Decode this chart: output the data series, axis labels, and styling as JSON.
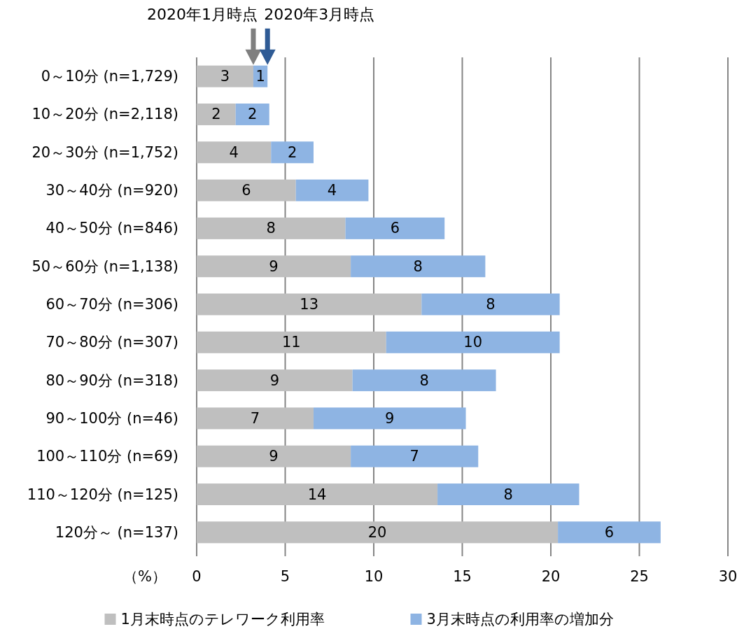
{
  "chart_data": {
    "type": "bar",
    "orientation": "horizontal",
    "stacked": true,
    "categories": [
      "0～10分 (n=1,729)",
      "10～20分 (n=2,118)",
      "20～30分 (n=1,752)",
      "30～40分 (n=920)",
      "40～50分 (n=846)",
      "50～60分 (n=1,138)",
      "60～70分 (n=306)",
      "70～80分 (n=307)",
      "80～90分 (n=318)",
      "90～100分 (n=46)",
      "100～110分 (n=69)",
      "110～120分 (n=125)",
      "120分～ (n=137)"
    ],
    "series": [
      {
        "name": "1月末時点のテレワーク利用率",
        "color": "#bfbfbf",
        "values": [
          3.2,
          2.2,
          4.2,
          5.6,
          8.4,
          8.7,
          12.7,
          10.7,
          8.8,
          6.6,
          8.7,
          13.6,
          20.4
        ],
        "value_labels": [
          "3",
          "2",
          "4",
          "6",
          "8",
          "9",
          "13",
          "11",
          "9",
          "7",
          "9",
          "14",
          "20"
        ]
      },
      {
        "name": "3月末時点の利用率の増加分",
        "color": "#8eb4e3",
        "values": [
          0.8,
          1.9,
          2.4,
          4.1,
          5.6,
          7.6,
          7.8,
          9.8,
          8.1,
          8.6,
          7.2,
          8.0,
          5.8
        ],
        "value_labels": [
          "1",
          "2",
          "2",
          "4",
          "6",
          "8",
          "8",
          "10",
          "8",
          "9",
          "7",
          "8",
          "6"
        ]
      }
    ],
    "xlim": [
      0,
      30
    ],
    "xticks": [
      0,
      5,
      10,
      15,
      20,
      25,
      30
    ],
    "xlabel": "（%）",
    "grid": "x",
    "legend": "bottom",
    "annotations": [
      "2020年1月時点",
      "2020年3月時点"
    ]
  }
}
